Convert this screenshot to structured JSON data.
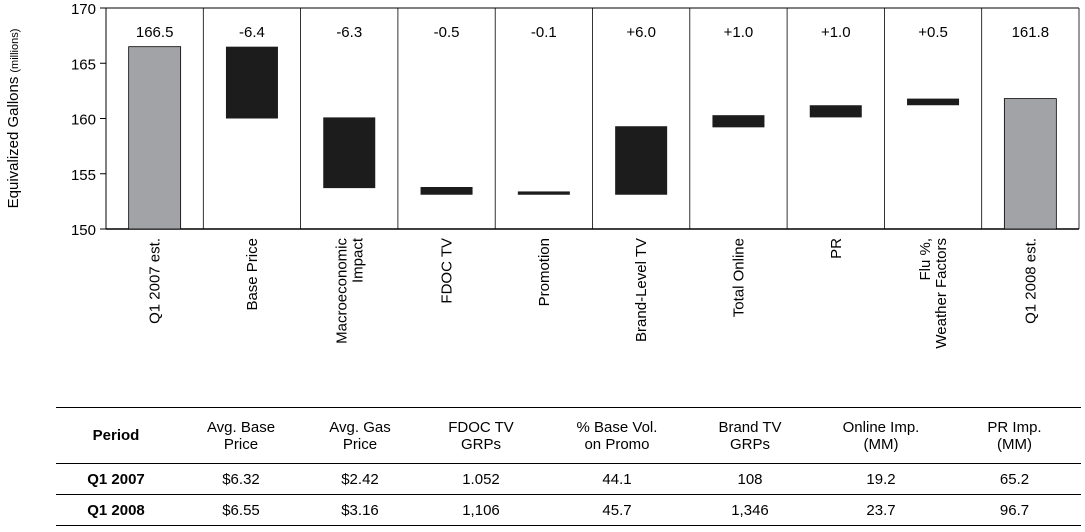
{
  "chart_data": {
    "type": "waterfall",
    "ylabel": "Equivalized Gallons",
    "ylabel_unit": "(millions)",
    "ylim": [
      150,
      170
    ],
    "yticks": [
      150,
      155,
      160,
      165,
      170
    ],
    "categories": [
      "Q1 2007 est.",
      "Base Price",
      "Macroeconomic Impact",
      "FDOC TV",
      "Promotion",
      "Brand-Level TV",
      "Total Online",
      "PR",
      "Flu %, Weather Factors",
      "Q1 2008 est."
    ],
    "bars": [
      {
        "label": "Q1 2007 est.",
        "value_label": "166.5",
        "kind": "total",
        "low": 150.0,
        "high": 166.5
      },
      {
        "label": "Base Price",
        "value_label": "-6.4",
        "kind": "change",
        "low": 160.0,
        "high": 166.5
      },
      {
        "label": "Macroeconomic Impact",
        "value_label": "-6.3",
        "kind": "change",
        "low": 153.7,
        "high": 160.1
      },
      {
        "label": "FDOC TV",
        "value_label": "-0.5",
        "kind": "change",
        "low": 153.1,
        "high": 153.8
      },
      {
        "label": "Promotion",
        "value_label": "-0.1",
        "kind": "change",
        "low": 153.1,
        "high": 153.4
      },
      {
        "label": "Brand-Level TV",
        "value_label": "+6.0",
        "kind": "change",
        "low": 153.1,
        "high": 159.3
      },
      {
        "label": "Total Online",
        "value_label": "+1.0",
        "kind": "change",
        "low": 159.2,
        "high": 160.3
      },
      {
        "label": "PR",
        "value_label": "+1.0",
        "kind": "change",
        "low": 160.1,
        "high": 161.2
      },
      {
        "label": "Flu %, Weather Factors",
        "value_label": "+0.5",
        "kind": "change",
        "low": 161.2,
        "high": 161.8
      },
      {
        "label": "Q1 2008 est.",
        "value_label": "161.8",
        "kind": "total",
        "low": 150.0,
        "high": 161.8
      }
    ],
    "colors": {
      "total": "#a2a3a6",
      "change": "#1c1c1c",
      "grid": "#000000"
    }
  },
  "table": {
    "headers": [
      [
        "Period"
      ],
      [
        "Avg. Base",
        "Price"
      ],
      [
        "Avg. Gas",
        "Price"
      ],
      [
        "FDOC TV",
        "GRPs"
      ],
      [
        "% Base Vol.",
        "on Promo"
      ],
      [
        "Brand TV",
        "GRPs"
      ],
      [
        "Online Imp.",
        "(MM)"
      ],
      [
        "PR Imp.",
        "(MM)"
      ]
    ],
    "rows": [
      [
        "Q1 2007",
        "$6.32",
        "$2.42",
        "1.052",
        "44.1",
        "108",
        "19.2",
        "65.2"
      ],
      [
        "Q1 2008",
        "$6.55",
        "$3.16",
        "1,106",
        "45.7",
        "1,346",
        "23.7",
        "96.7"
      ]
    ]
  }
}
